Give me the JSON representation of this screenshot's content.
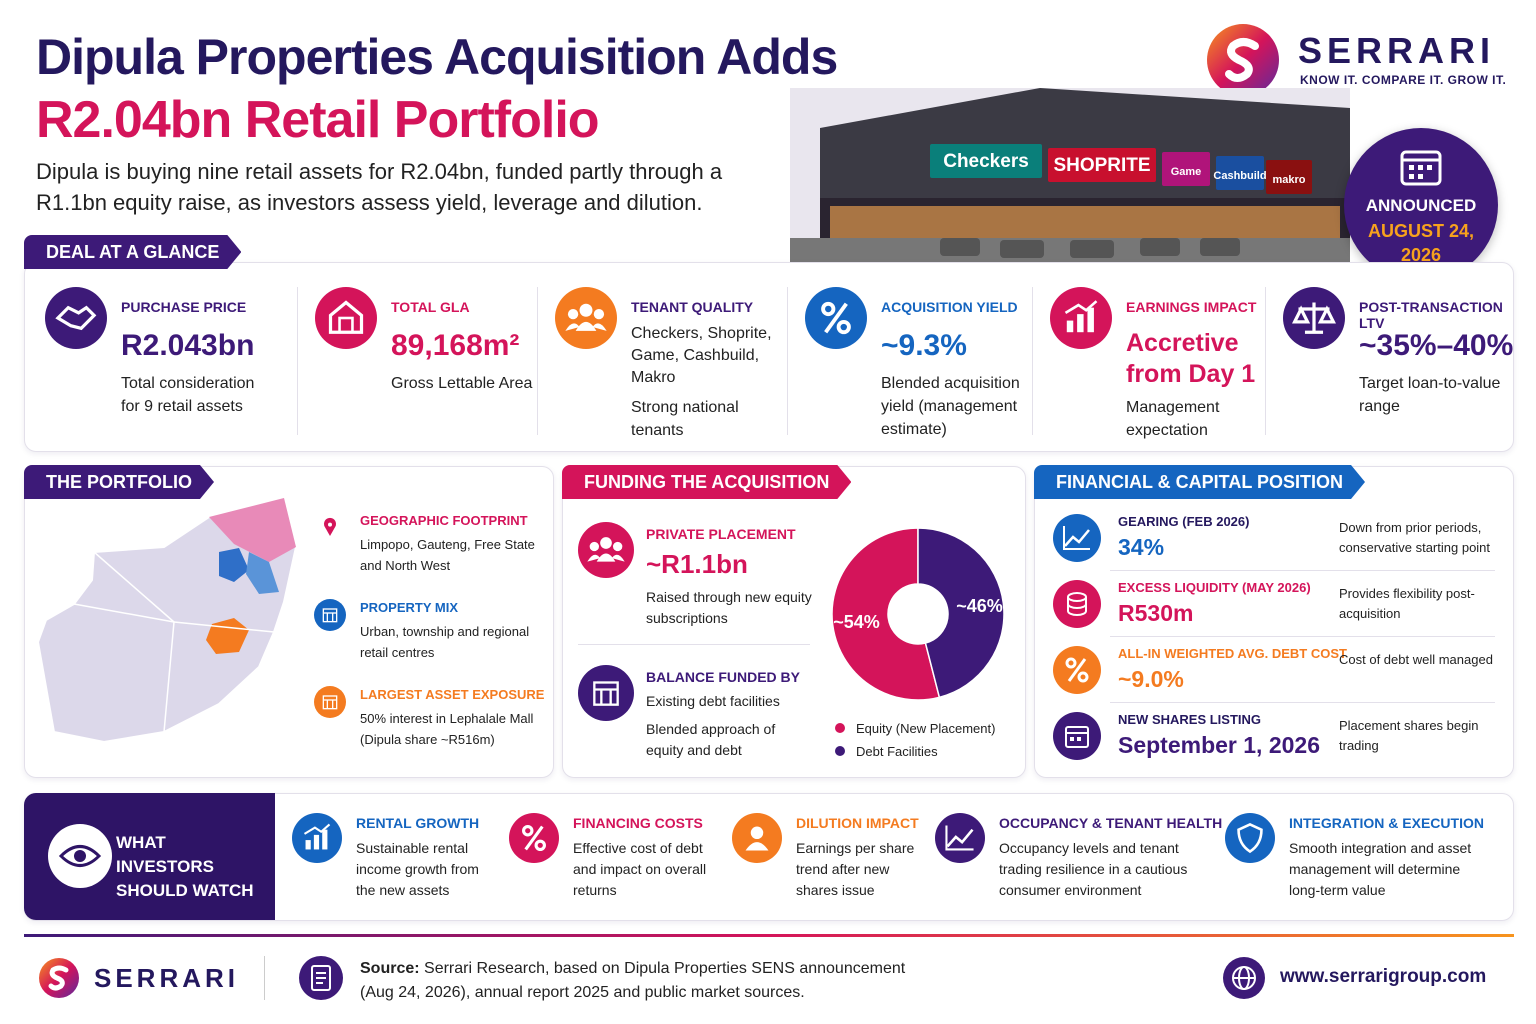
{
  "header": {
    "title_line1": "Dipula Properties Acquisition Adds",
    "title_line2": "R2.04bn Retail Portfolio",
    "subtitle": "Dipula is buying nine retail assets for R2.04bn, funded partly through a R1.1bn equity raise, as investors assess yield, leverage and dilution."
  },
  "brand": {
    "name": "SERRARI",
    "tagline": "KNOW IT. COMPARE IT. GROW IT."
  },
  "storefront": {
    "signs": [
      "Checkers",
      "SHOPRITE",
      "Game",
      "Cashbuild",
      "makro"
    ]
  },
  "badge": {
    "label": "ANNOUNCED",
    "date": "AUGUST 24, 2026"
  },
  "glance": {
    "title": "DEAL AT A GLANCE",
    "items": [
      {
        "label": "PURCHASE PRICE",
        "value": "R2.043bn",
        "desc": "Total consideration for 9 retail assets"
      },
      {
        "label": "TOTAL GLA",
        "value": "89,168m²",
        "desc": "Gross Lettable Area"
      },
      {
        "label": "TENANT QUALITY",
        "value": "Checkers, Shoprite, Game, Cashbuild, Makro",
        "desc": "Strong national tenants"
      },
      {
        "label": "ACQUISITION YIELD",
        "value": "~9.3%",
        "desc": "Blended acquisition yield (management estimate)"
      },
      {
        "label": "EARNINGS IMPACT",
        "value": "Accretive from Day 1",
        "desc": "Management expectation"
      },
      {
        "label": "POST-TRANSACTION LTV",
        "value": "~35%–40%",
        "desc": "Target loan-to-value range"
      }
    ]
  },
  "portfolio": {
    "title": "THE PORTFOLIO",
    "items": [
      {
        "label": "GEOGRAPHIC FOOTPRINT",
        "text": "Limpopo, Gauteng, Free State and North West"
      },
      {
        "label": "PROPERTY MIX",
        "text": "Urban, township and regional retail centres"
      },
      {
        "label": "LARGEST ASSET EXPOSURE",
        "text": "50% interest in Lephalale Mall (Dipula share ~R516m)"
      }
    ]
  },
  "funding": {
    "title": "FUNDING THE ACQUISITION",
    "items": [
      {
        "label": "PRIVATE PLACEMENT",
        "value": "~R1.1bn",
        "desc": "Raised through new equity subscriptions"
      },
      {
        "label": "BALANCE FUNDED BY",
        "value": "Existing debt facilities",
        "desc": "Blended approach of equity and debt"
      }
    ]
  },
  "chart_data": {
    "type": "pie",
    "categories": [
      "Equity (New Placement)",
      "Debt Facilities"
    ],
    "values": [
      54,
      46
    ],
    "value_labels": [
      "~54%",
      "~46%"
    ],
    "colors": [
      "#d4145a",
      "#3d1a78"
    ]
  },
  "financial": {
    "title": "FINANCIAL & CAPITAL POSITION",
    "rows": [
      {
        "label": "GEARING (FEB 2026)",
        "value": "34%",
        "note": "Down from prior periods, conservative starting point"
      },
      {
        "label": "EXCESS LIQUIDITY (MAY 2026)",
        "value": "R530m",
        "note": "Provides flexibility post-acquisition"
      },
      {
        "label": "ALL-IN WEIGHTED AVG. DEBT COST",
        "value": "~9.0%",
        "note": "Cost of debt well managed"
      },
      {
        "label": "NEW SHARES LISTING",
        "value": "September 1, 2026",
        "note": "Placement shares begin trading"
      }
    ]
  },
  "watch": {
    "title": "WHAT INVESTORS SHOULD WATCH",
    "items": [
      {
        "label": "RENTAL GROWTH",
        "text": "Sustainable rental income growth from the new assets"
      },
      {
        "label": "FINANCING COSTS",
        "text": "Effective cost of debt and impact on overall returns"
      },
      {
        "label": "DILUTION IMPACT",
        "text": "Earnings per share trend after new shares issue"
      },
      {
        "label": "OCCUPANCY & TENANT HEALTH",
        "text": "Occupancy levels and tenant trading resilience in a cautious consumer environment"
      },
      {
        "label": "INTEGRATION & EXECUTION",
        "text": "Smooth integration and asset management will determine long-term value"
      }
    ]
  },
  "footer": {
    "brand": "SERRARI",
    "source_label": "Source:",
    "source": "Serrari Research, based on Dipula Properties SENS announcement (Aug 24, 2026), annual report 2025 and public market sources.",
    "website": "www.serrarigroup.com"
  }
}
